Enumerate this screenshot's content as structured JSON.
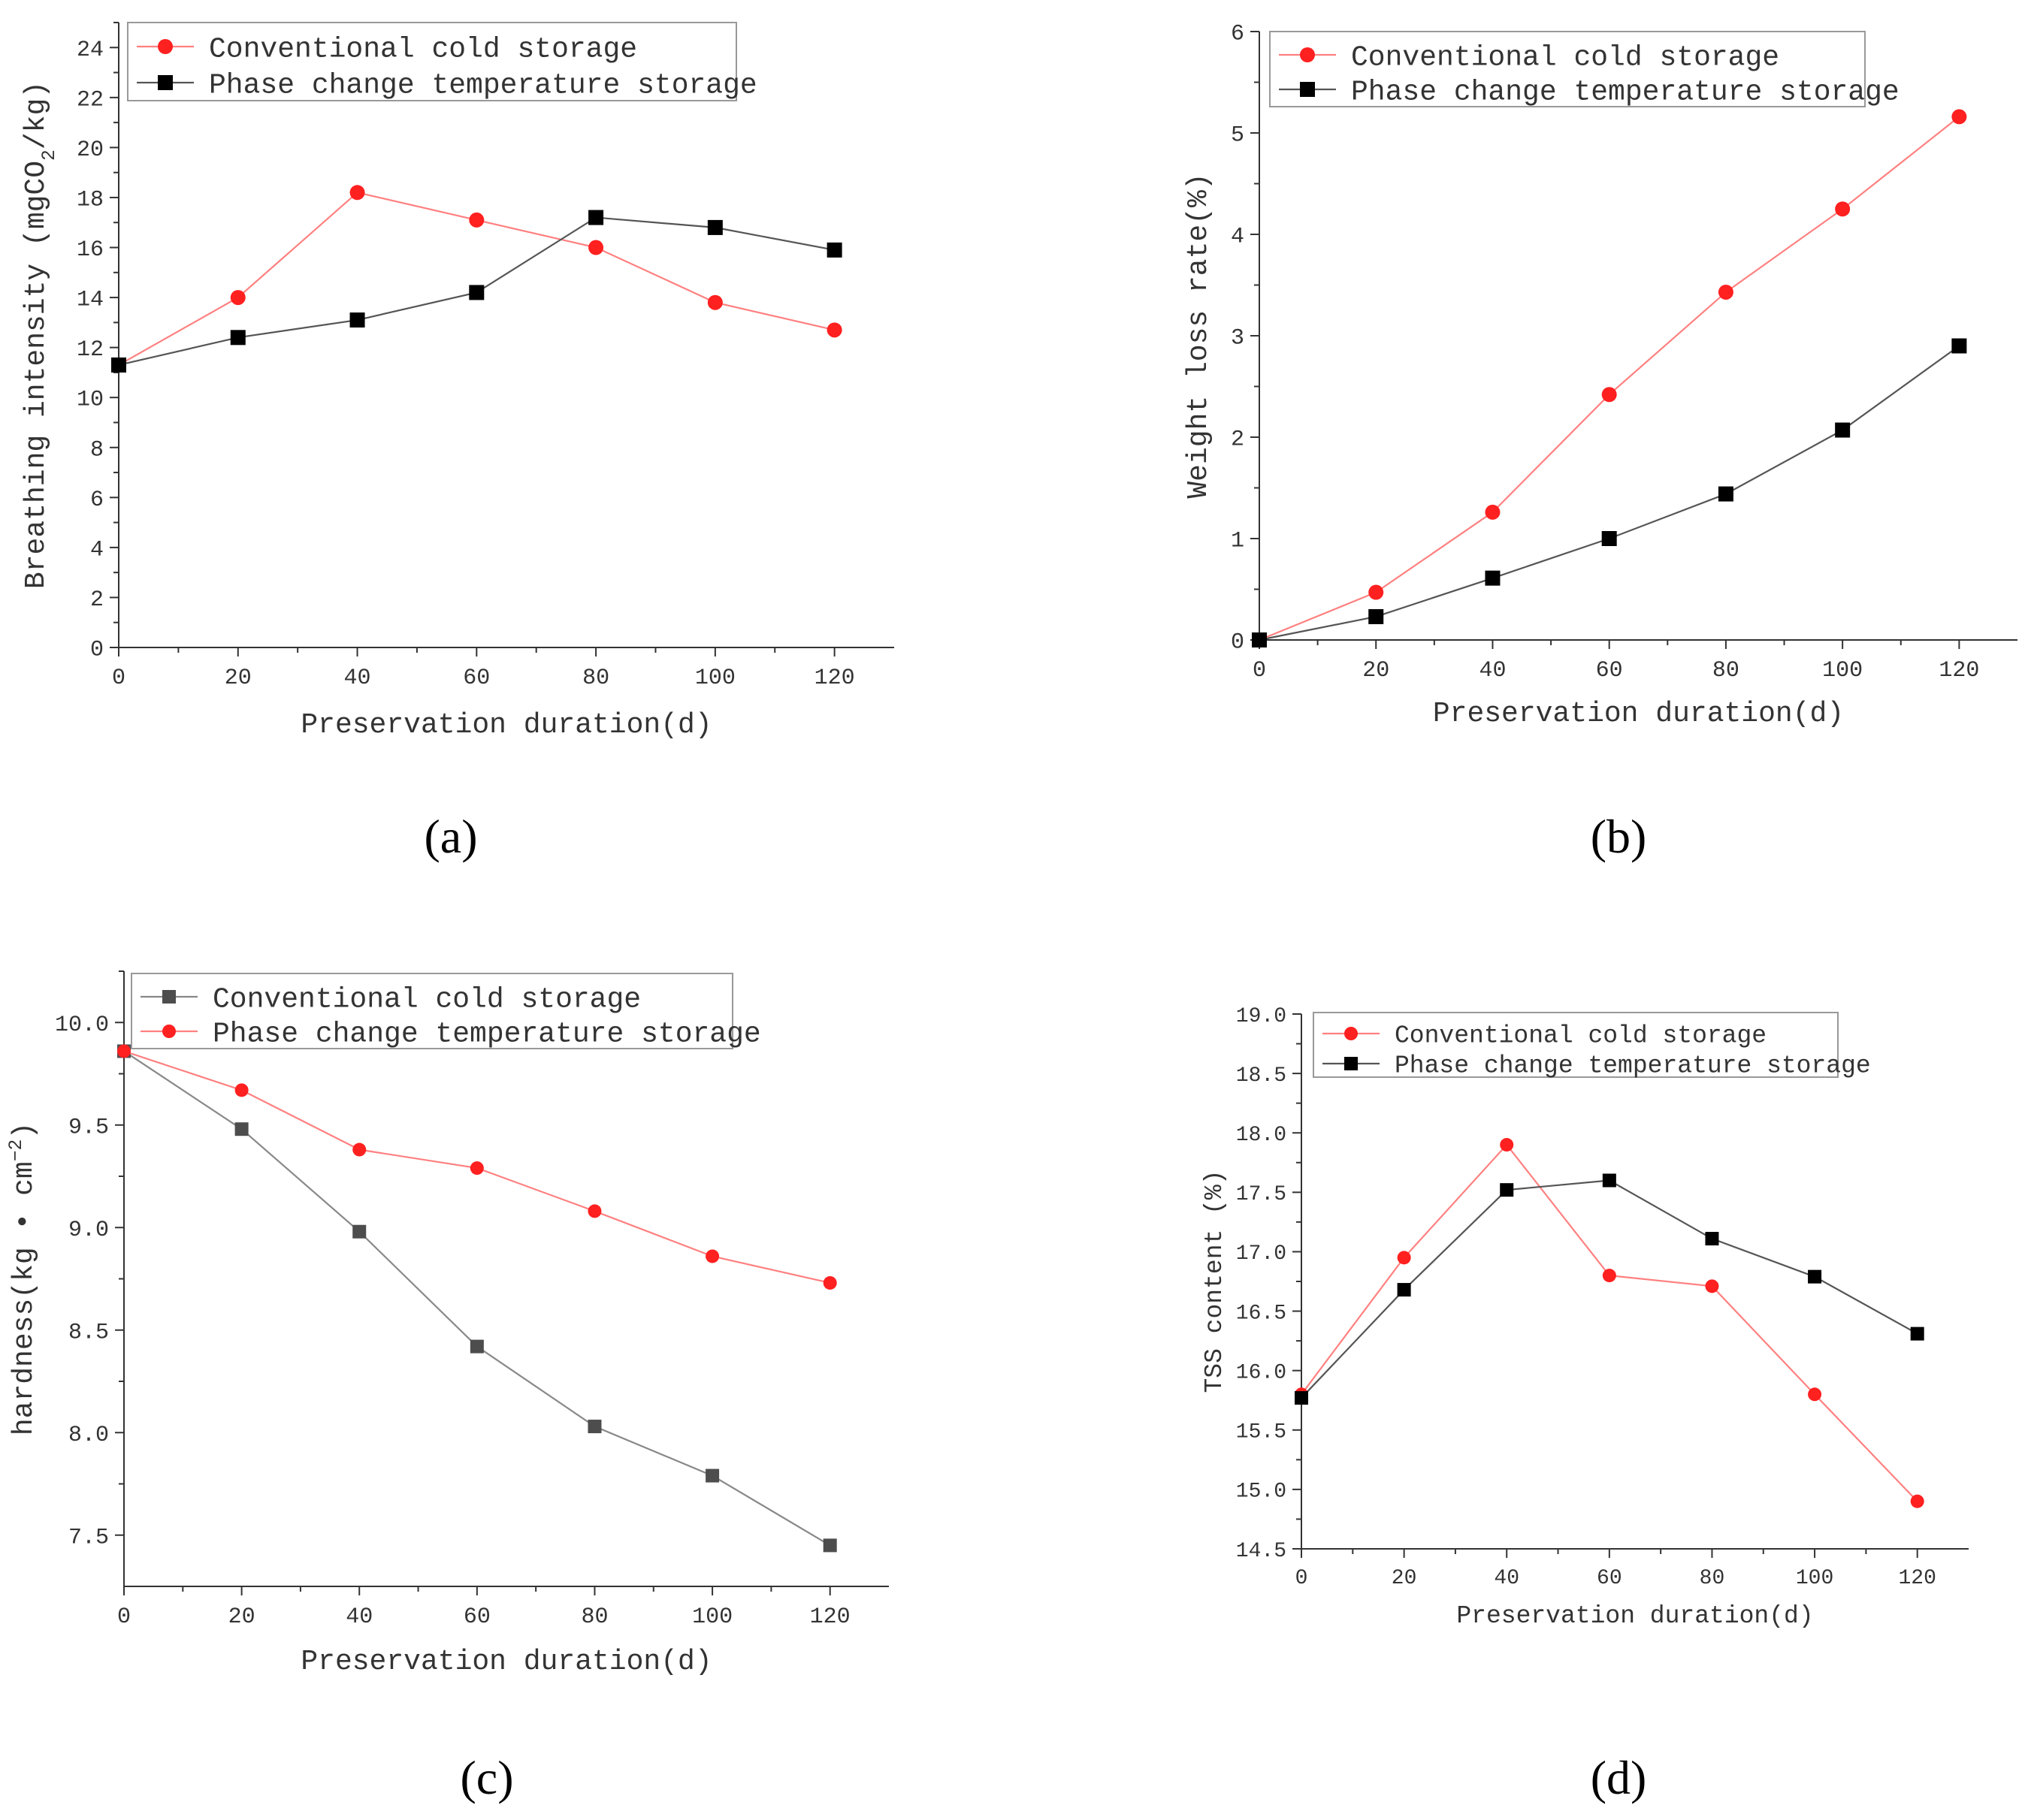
{
  "captions": [
    "(a)",
    "(b)",
    "(c)",
    "(d)"
  ],
  "colors": {
    "red_series": "#ff2020",
    "red_line": "#ff8080",
    "black_series": "#000000",
    "black_line": "#555555",
    "gray_series": "#4d4d4d",
    "gray_line": "#888888",
    "axis": "#333333"
  },
  "chart_data": [
    {
      "id": "a",
      "type": "line",
      "title": "",
      "caption": "(a)",
      "xlabel": "Preservation duration(d)",
      "ylabel_main": "Breathing intensity (mgCO",
      "ylabel_sub": "2",
      "ylabel_tail": "/kg)",
      "x": [
        0,
        20,
        40,
        60,
        80,
        100,
        120
      ],
      "xlim": [
        0,
        130
      ],
      "xticks": [
        0,
        20,
        40,
        60,
        80,
        100,
        120
      ],
      "xtick_labels": [
        "0",
        "20",
        "40",
        "60",
        "80",
        "100",
        "120"
      ],
      "ylim": [
        0,
        25
      ],
      "yticks": [
        0,
        2,
        4,
        6,
        8,
        10,
        12,
        14,
        16,
        18,
        20,
        22,
        24
      ],
      "ytick_labels": [
        "0",
        "2",
        "4",
        "6",
        "8",
        "10",
        "12",
        "14",
        "16",
        "18",
        "20",
        "22",
        "24"
      ],
      "legend_position": "top-left",
      "series": [
        {
          "name": "Conventional cold storage",
          "marker": "circle",
          "color_key": "red",
          "values": [
            11.3,
            14.0,
            18.2,
            17.1,
            16.0,
            13.8,
            12.7
          ]
        },
        {
          "name": "Phase change temperature storage",
          "marker": "square",
          "color_key": "black",
          "values": [
            11.3,
            12.4,
            13.1,
            14.2,
            17.2,
            16.8,
            15.9
          ]
        }
      ]
    },
    {
      "id": "b",
      "type": "line",
      "title": "",
      "caption": "(b)",
      "xlabel": "Preservation duration(d)",
      "ylabel_main": "Weight loss rate(%)",
      "ylabel_sub": "",
      "ylabel_tail": "",
      "x": [
        0,
        20,
        40,
        60,
        80,
        100,
        120
      ],
      "xlim": [
        0,
        130
      ],
      "xticks": [
        0,
        20,
        40,
        60,
        80,
        100,
        120
      ],
      "xtick_labels": [
        "0",
        "20",
        "40",
        "60",
        "80",
        "100",
        "120"
      ],
      "ylim": [
        0,
        6
      ],
      "yticks": [
        0,
        1,
        2,
        3,
        4,
        5,
        6
      ],
      "ytick_labels": [
        "0",
        "1",
        "2",
        "3",
        "4",
        "5",
        "6"
      ],
      "legend_position": "top-right",
      "series": [
        {
          "name": "Conventional cold storage",
          "marker": "circle",
          "color_key": "red",
          "values": [
            0.0,
            0.47,
            1.26,
            2.42,
            3.43,
            4.25,
            5.16
          ]
        },
        {
          "name": "Phase change temperature storage",
          "marker": "square",
          "color_key": "black",
          "values": [
            0.0,
            0.23,
            0.61,
            1.0,
            1.44,
            2.07,
            2.9
          ]
        }
      ]
    },
    {
      "id": "c",
      "type": "line",
      "title": "",
      "caption": "(c)",
      "xlabel": "Preservation duration(d)",
      "ylabel_main": "hardness(kg • cm",
      "ylabel_sub": "−2",
      "ylabel_tail": ")",
      "x": [
        0,
        20,
        40,
        60,
        80,
        100,
        120
      ],
      "xlim": [
        0,
        130
      ],
      "xticks": [
        0,
        20,
        40,
        60,
        80,
        100,
        120
      ],
      "xtick_labels": [
        "0",
        "20",
        "40",
        "60",
        "80",
        "100",
        "120"
      ],
      "ylim": [
        7.25,
        10.25
      ],
      "yticks": [
        7.5,
        8.0,
        8.5,
        9.0,
        9.5,
        10.0
      ],
      "ytick_labels": [
        "7.5",
        "8.0",
        "8.5",
        "9.0",
        "9.5",
        "10.0"
      ],
      "legend_position": "top-left",
      "series": [
        {
          "name": "Conventional cold storage",
          "marker": "square",
          "color_key": "gray",
          "values": [
            9.86,
            9.48,
            8.98,
            8.42,
            8.03,
            7.79,
            7.45
          ]
        },
        {
          "name": "Phase change temperature storage",
          "marker": "circle",
          "color_key": "red",
          "values": [
            9.86,
            9.67,
            9.38,
            9.29,
            9.08,
            8.86,
            8.73
          ]
        }
      ]
    },
    {
      "id": "d",
      "type": "line",
      "title": "",
      "caption": "(d)",
      "xlabel": "Preservation duration(d)",
      "ylabel_main": "TSS content (%)",
      "ylabel_sub": "",
      "ylabel_tail": "",
      "x": [
        0,
        20,
        40,
        60,
        80,
        100,
        120
      ],
      "xlim": [
        0,
        130
      ],
      "xticks": [
        0,
        20,
        40,
        60,
        80,
        100,
        120
      ],
      "xtick_labels": [
        "0",
        "20",
        "40",
        "60",
        "80",
        "100",
        "120"
      ],
      "ylim": [
        14.5,
        19.0
      ],
      "yticks": [
        14.5,
        15.0,
        15.5,
        16.0,
        16.5,
        17.0,
        17.5,
        18.0,
        18.5,
        19.0
      ],
      "ytick_labels": [
        "14.5",
        "15.0",
        "15.5",
        "16.0",
        "16.5",
        "17.0",
        "17.5",
        "18.0",
        "18.5",
        "19.0"
      ],
      "legend_position": "top-right",
      "series": [
        {
          "name": "Conventional cold storage",
          "marker": "circle",
          "color_key": "red",
          "values": [
            15.8,
            16.95,
            17.9,
            16.8,
            16.71,
            15.8,
            14.9
          ]
        },
        {
          "name": "Phase change temperature storage",
          "marker": "square",
          "color_key": "black",
          "values": [
            15.77,
            16.68,
            17.52,
            17.6,
            17.11,
            16.79,
            16.31
          ]
        }
      ]
    }
  ]
}
